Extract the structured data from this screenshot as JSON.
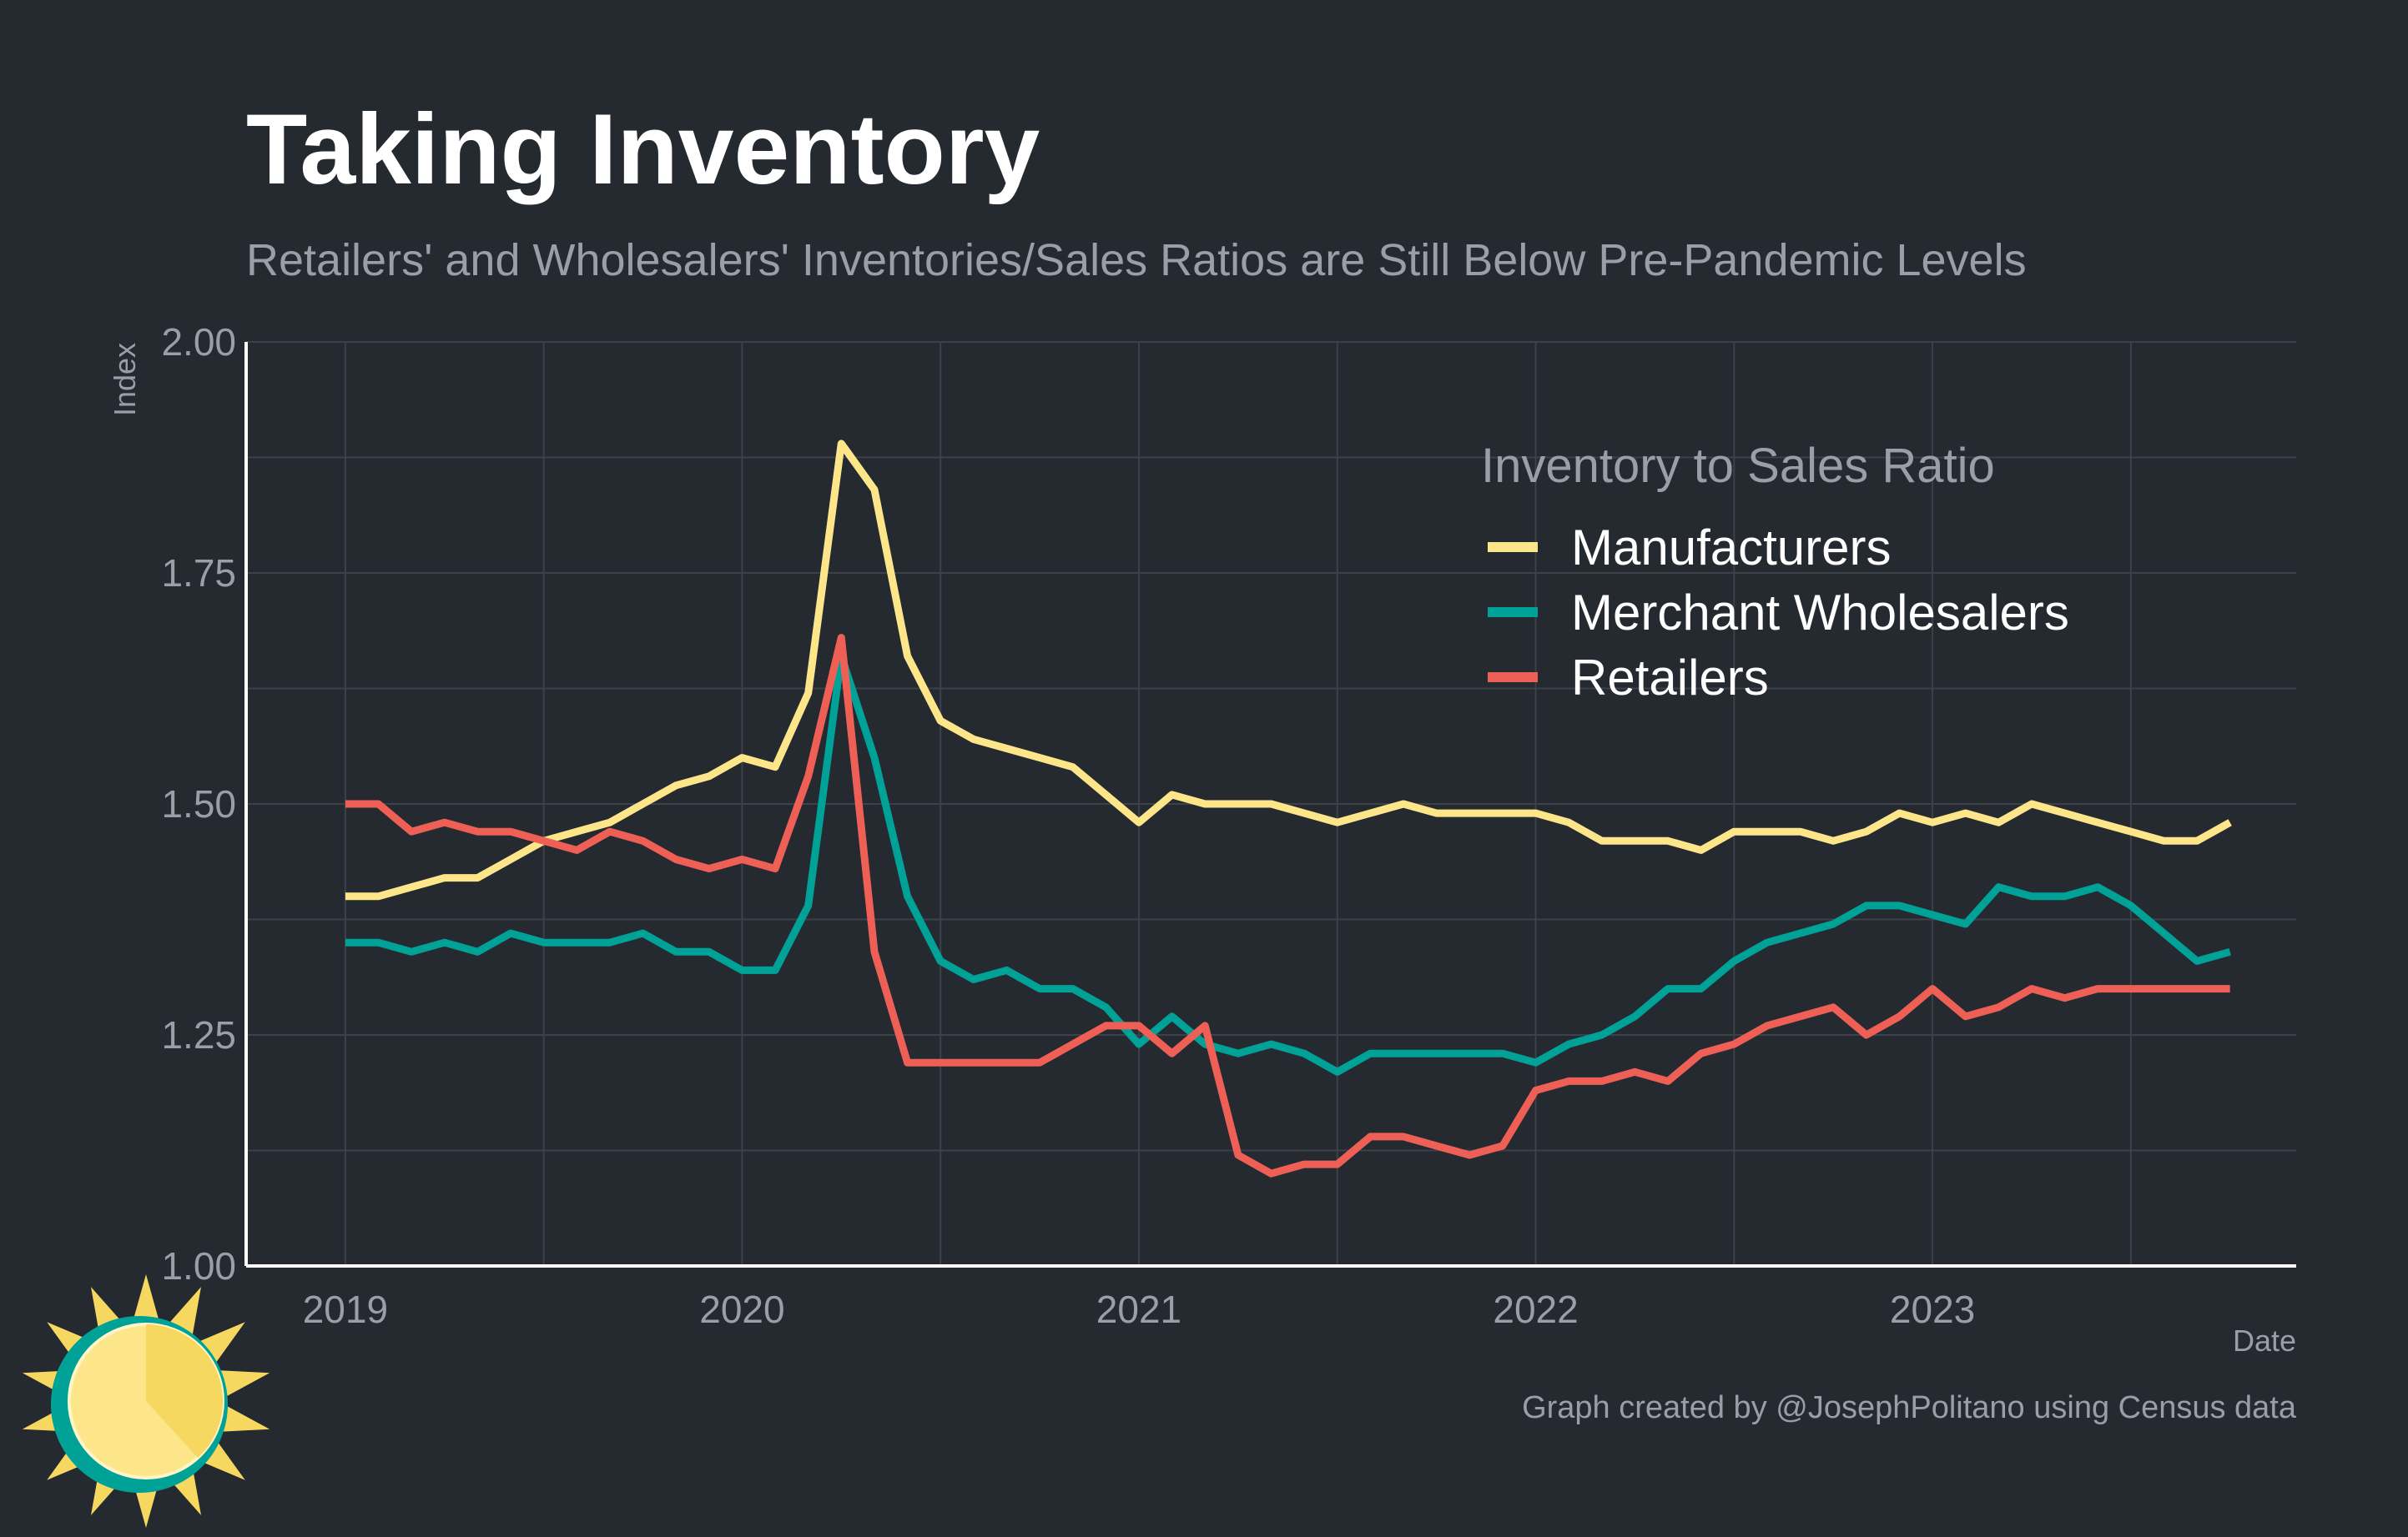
{
  "chart_data": {
    "type": "line",
    "title": "Taking Inventory",
    "subtitle": "Retailers' and Wholesalers' Inventories/Sales Ratios are Still Below Pre-Pandemic Levels",
    "xlabel": "Date",
    "ylabel": "Index",
    "caption": "Graph created by @JosephPolitano using Census data",
    "legend_title": "Inventory to Sales Ratio",
    "legend_position": "top-right",
    "grid": true,
    "xlim": [
      "2018-10",
      "2023-12"
    ],
    "ylim": [
      1.0,
      2.0
    ],
    "x_tick_labels": [
      "2019",
      "2020",
      "2021",
      "2022",
      "2023"
    ],
    "y_tick_labels": [
      "1.00",
      "1.25",
      "1.50",
      "1.75",
      "2.00"
    ],
    "x": [
      "2019-01",
      "2019-02",
      "2019-03",
      "2019-04",
      "2019-05",
      "2019-06",
      "2019-07",
      "2019-08",
      "2019-09",
      "2019-10",
      "2019-11",
      "2019-12",
      "2020-01",
      "2020-02",
      "2020-03",
      "2020-04",
      "2020-05",
      "2020-06",
      "2020-07",
      "2020-08",
      "2020-09",
      "2020-10",
      "2020-11",
      "2020-12",
      "2021-01",
      "2021-02",
      "2021-03",
      "2021-04",
      "2021-05",
      "2021-06",
      "2021-07",
      "2021-08",
      "2021-09",
      "2021-10",
      "2021-11",
      "2021-12",
      "2022-01",
      "2022-02",
      "2022-03",
      "2022-04",
      "2022-05",
      "2022-06",
      "2022-07",
      "2022-08",
      "2022-09",
      "2022-10",
      "2022-11",
      "2022-12",
      "2023-01",
      "2023-02",
      "2023-03",
      "2023-04",
      "2023-05",
      "2023-06",
      "2023-07",
      "2023-08",
      "2023-09",
      "2023-10"
    ],
    "series": [
      {
        "name": "Manufacturers",
        "color": "#fde68a",
        "values": [
          1.4,
          1.4,
          1.41,
          1.42,
          1.42,
          1.44,
          1.46,
          1.47,
          1.48,
          1.5,
          1.52,
          1.53,
          1.55,
          1.54,
          1.62,
          1.89,
          1.84,
          1.66,
          1.59,
          1.57,
          1.56,
          1.55,
          1.54,
          1.51,
          1.48,
          1.51,
          1.5,
          1.5,
          1.5,
          1.49,
          1.48,
          1.49,
          1.5,
          1.49,
          1.49,
          1.49,
          1.49,
          1.48,
          1.46,
          1.46,
          1.46,
          1.45,
          1.47,
          1.47,
          1.47,
          1.46,
          1.47,
          1.49,
          1.48,
          1.49,
          1.48,
          1.5,
          1.49,
          1.48,
          1.47,
          1.46,
          1.46,
          1.48
        ]
      },
      {
        "name": "Merchant Wholesalers",
        "color": "#00a298",
        "values": [
          1.35,
          1.35,
          1.34,
          1.35,
          1.34,
          1.36,
          1.35,
          1.35,
          1.35,
          1.36,
          1.34,
          1.34,
          1.32,
          1.32,
          1.39,
          1.66,
          1.55,
          1.4,
          1.33,
          1.31,
          1.32,
          1.3,
          1.3,
          1.28,
          1.24,
          1.27,
          1.24,
          1.23,
          1.24,
          1.23,
          1.21,
          1.23,
          1.23,
          1.23,
          1.23,
          1.23,
          1.22,
          1.24,
          1.25,
          1.27,
          1.3,
          1.3,
          1.33,
          1.35,
          1.36,
          1.37,
          1.39,
          1.39,
          1.38,
          1.37,
          1.41,
          1.4,
          1.4,
          1.41,
          1.39,
          1.36,
          1.33,
          1.34
        ]
      },
      {
        "name": "Retailers",
        "color": "#ee5f55",
        "values": [
          1.5,
          1.5,
          1.47,
          1.48,
          1.47,
          1.47,
          1.46,
          1.45,
          1.47,
          1.46,
          1.44,
          1.43,
          1.44,
          1.43,
          1.53,
          1.68,
          1.34,
          1.22,
          1.22,
          1.22,
          1.22,
          1.22,
          1.24,
          1.26,
          1.26,
          1.23,
          1.26,
          1.12,
          1.1,
          1.11,
          1.11,
          1.14,
          1.14,
          1.13,
          1.12,
          1.13,
          1.19,
          1.2,
          1.2,
          1.21,
          1.2,
          1.23,
          1.24,
          1.26,
          1.27,
          1.28,
          1.25,
          1.27,
          1.3,
          1.27,
          1.28,
          1.3,
          1.29,
          1.3,
          1.3,
          1.3,
          1.3,
          1.3
        ]
      }
    ]
  },
  "logo": {
    "name": "sun-logo",
    "colors": {
      "sun": "#fde68a",
      "rays": "#f6d860",
      "ring": "#00a298"
    }
  }
}
